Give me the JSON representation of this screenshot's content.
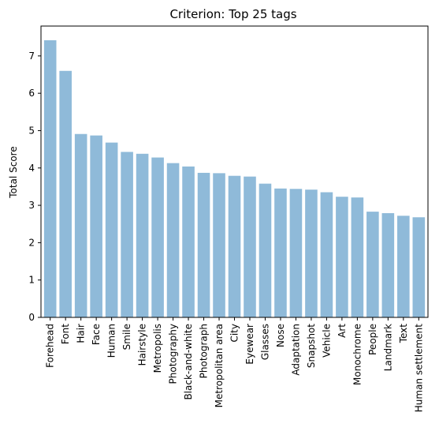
{
  "chart_data": {
    "type": "bar",
    "title": "Criterion: Top 25 tags",
    "xlabel": "",
    "ylabel": "Total Score",
    "ylim": [
      0,
      7.8
    ],
    "yticks": [
      0,
      1,
      2,
      3,
      4,
      5,
      6,
      7
    ],
    "grid": false,
    "bar_color": "#8fbad9",
    "categories": [
      "Forehead",
      "Font",
      "Hair",
      "Face",
      "Human",
      "Smile",
      "Hairstyle",
      "Metropolis",
      "Photography",
      "Black-and-white",
      "Photograph",
      "Metropolitan area",
      "City",
      "Eyewear",
      "Glasses",
      "Nose",
      "Adaptation",
      "Snapshot",
      "Vehicle",
      "Art",
      "Monochrome",
      "People",
      "Landmark",
      "Text",
      "Human settlement"
    ],
    "values": [
      7.42,
      6.6,
      4.91,
      4.87,
      4.68,
      4.43,
      4.38,
      4.28,
      4.13,
      4.04,
      3.87,
      3.86,
      3.79,
      3.77,
      3.58,
      3.45,
      3.44,
      3.42,
      3.35,
      3.23,
      3.21,
      2.83,
      2.79,
      2.72,
      2.68
    ]
  }
}
